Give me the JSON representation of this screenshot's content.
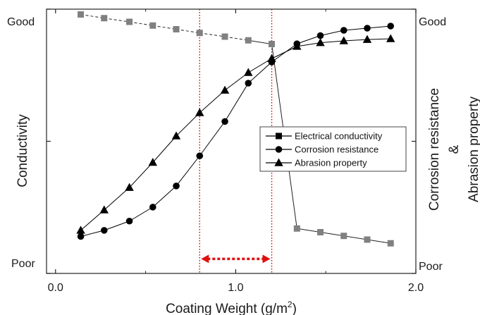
{
  "chart_data": {
    "type": "line",
    "x": {
      "label": "Coating Weight (g/m",
      "label_superscript": "2",
      "label_close": ")",
      "range": [
        -0.05,
        2.0
      ],
      "ticks": [
        {
          "value": 0.0,
          "label": "0.0"
        },
        {
          "value": 1.0,
          "label": "1.0"
        },
        {
          "value": 2.0,
          "label": "2.0"
        }
      ]
    },
    "y_left": {
      "label": "Conductivity",
      "top_label": "Good",
      "bottom_label": "Poor",
      "range": [
        0,
        10
      ]
    },
    "y_right": {
      "label_line1": "Corrosion resistance",
      "label_line2": "&",
      "label_line3": "Abrasion property",
      "top_label": "Good",
      "bottom_label": "Poor",
      "range": [
        0,
        10
      ]
    },
    "series": [
      {
        "name": "Electrical conductivity",
        "marker": "square",
        "color": "#808080",
        "line_color": "#222222",
        "dashed_before": 7,
        "x": [
          0.14,
          0.27,
          0.41,
          0.54,
          0.67,
          0.8,
          0.94,
          1.07,
          1.2,
          1.34,
          1.47,
          1.6,
          1.73,
          1.86
        ],
        "y": [
          9.8,
          9.66,
          9.52,
          9.38,
          9.24,
          9.1,
          8.96,
          8.82,
          8.68,
          1.7,
          1.56,
          1.42,
          1.28,
          1.14
        ]
      },
      {
        "name": "Corrosion resistance",
        "marker": "circle",
        "color": "#000000",
        "x": [
          0.14,
          0.27,
          0.41,
          0.54,
          0.67,
          0.8,
          0.94,
          1.07,
          1.2,
          1.34,
          1.47,
          1.6,
          1.73,
          1.86
        ],
        "y": [
          1.4,
          1.63,
          1.98,
          2.51,
          3.31,
          4.45,
          5.75,
          7.2,
          8.0,
          8.69,
          9.0,
          9.2,
          9.28,
          9.36
        ]
      },
      {
        "name": "Abrasion property",
        "marker": "triangle",
        "color": "#000000",
        "x": [
          0.14,
          0.27,
          0.41,
          0.54,
          0.67,
          0.8,
          0.94,
          1.07,
          1.2,
          1.34,
          1.47,
          1.6,
          1.73,
          1.86
        ],
        "y": [
          1.63,
          2.4,
          3.25,
          4.2,
          5.2,
          6.08,
          6.93,
          7.6,
          8.13,
          8.59,
          8.73,
          8.8,
          8.85,
          8.88
        ]
      }
    ],
    "vlines": [
      {
        "x": 0.8,
        "color": "#cc0000",
        "style": "dotted"
      },
      {
        "x": 1.2,
        "color": "#cc0000",
        "style": "dotted"
      }
    ],
    "range_arrow": {
      "from": 0.8,
      "to": 1.2,
      "y": 0.55,
      "color": "#e01010"
    },
    "legend_position": "center-right",
    "grid": false
  }
}
